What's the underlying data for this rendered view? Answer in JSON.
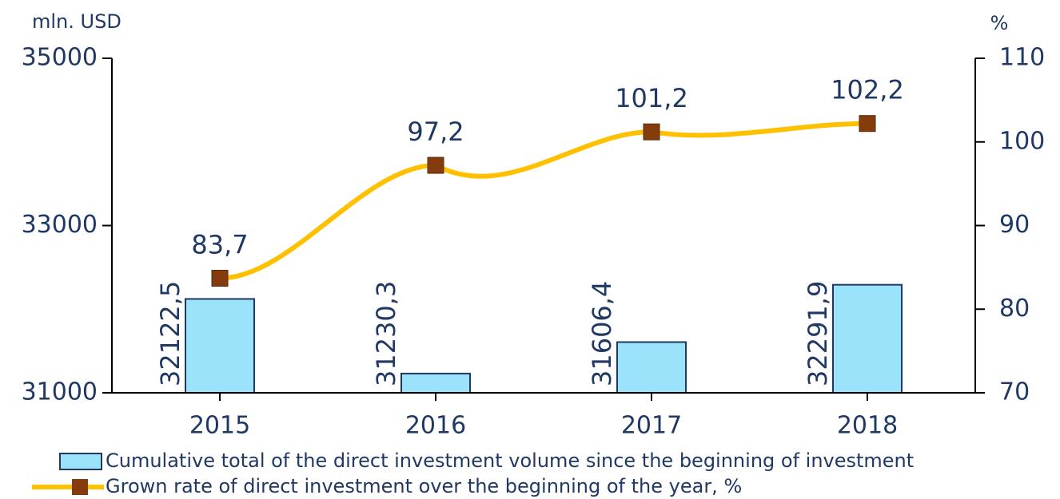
{
  "chart_data": {
    "type": "bar_line",
    "y_label": "mln. USD",
    "y2_label": "%",
    "categories": [
      "2015",
      "2016",
      "2017",
      "2018"
    ],
    "series": [
      {
        "name": "Cumulative total of the direct investment volume since the beginning of investment",
        "type": "bar",
        "color": "#9be3fa",
        "axis": "y",
        "values": [
          32122.5,
          31230.3,
          31606.4,
          32291.9
        ],
        "value_labels": [
          "32122,5",
          "31230,3",
          "31606,4",
          "32291,9"
        ]
      },
      {
        "name": "Grown rate of direct investment over the beginning of the year, %",
        "type": "line",
        "color": "#ffc000",
        "marker_color": "#843c0c",
        "axis": "y2",
        "values": [
          83.7,
          97.2,
          101.2,
          102.2
        ],
        "value_labels": [
          "83,7",
          "97,2",
          "101,2",
          "102,2"
        ]
      }
    ],
    "ylim": [
      31000,
      35000
    ],
    "yticks": [
      31000,
      33000,
      35000
    ],
    "y2lim": [
      70,
      110
    ],
    "y2ticks": [
      70,
      80,
      90,
      100,
      110
    ]
  }
}
